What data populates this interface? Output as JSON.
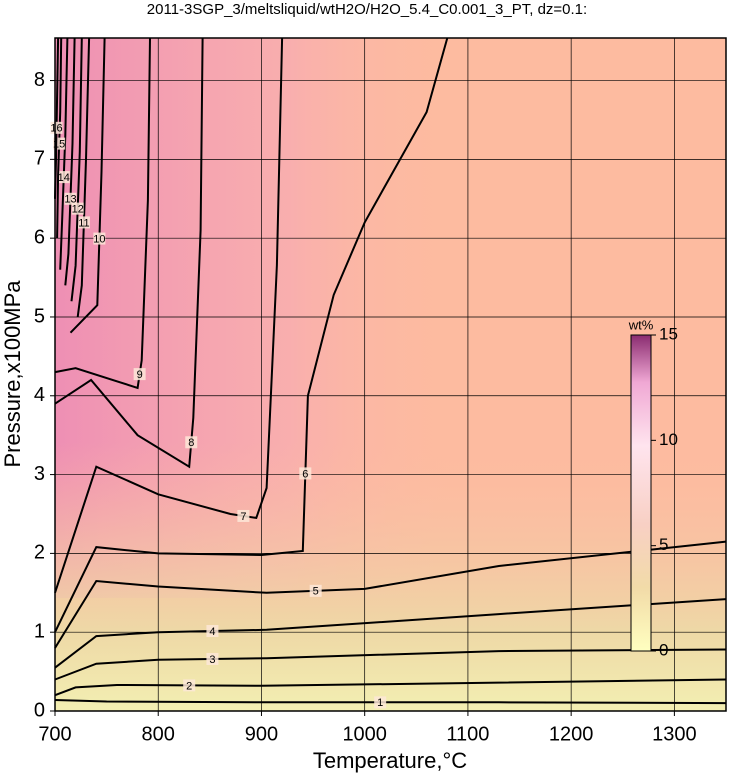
{
  "chart_data": {
    "type": "contour",
    "title": "2011-3SGP_3/meltsliquid/wtH2O/H2O_5.4_C0.001_3_PT, dz=0.1:",
    "xlabel": "Temperature,°C",
    "ylabel": "Pressure,x100MPa",
    "xlim": [
      700,
      1350
    ],
    "ylim": [
      0,
      8.54
    ],
    "xticks": [
      700,
      800,
      900,
      1000,
      1100,
      1200,
      1300
    ],
    "yticks": [
      0,
      1,
      2,
      3,
      4,
      5,
      6,
      7,
      8
    ],
    "grid": true,
    "line_color": "#000000",
    "contours": [
      {
        "level": 1,
        "x": [
          700,
          750,
          900,
          1130,
          1350
        ],
        "y": [
          0.14,
          0.12,
          0.11,
          0.11,
          0.1
        ]
      },
      {
        "level": 2,
        "x": [
          700,
          720,
          760,
          900,
          1130,
          1350
        ],
        "y": [
          0.2,
          0.3,
          0.33,
          0.32,
          0.36,
          0.4
        ]
      },
      {
        "level": 3,
        "x": [
          700,
          740,
          800,
          905,
          1130,
          1350
        ],
        "y": [
          0.4,
          0.6,
          0.65,
          0.67,
          0.76,
          0.78
        ]
      },
      {
        "level": 4,
        "x": [
          700,
          740,
          800,
          905,
          1130,
          1350
        ],
        "y": [
          0.55,
          0.95,
          1.0,
          1.03,
          1.23,
          1.42
        ]
      },
      {
        "level": 5,
        "x": [
          700,
          740,
          800,
          905,
          1000,
          1130,
          1350
        ],
        "y": [
          0.8,
          1.65,
          1.58,
          1.5,
          1.55,
          1.84,
          2.15
        ]
      },
      {
        "level": 6,
        "x": [
          700,
          740,
          800,
          900,
          940,
          945,
          970,
          1000,
          1060,
          1080
        ],
        "y": [
          1.0,
          2.08,
          2.0,
          1.98,
          2.03,
          4.0,
          5.28,
          6.2,
          7.6,
          8.54
        ]
      },
      {
        "level": 7,
        "x": [
          700,
          740,
          800,
          870,
          895,
          905,
          915,
          920
        ],
        "y": [
          1.5,
          3.1,
          2.75,
          2.5,
          2.45,
          2.83,
          5.66,
          8.54
        ]
      },
      {
        "level": 8,
        "x": [
          700,
          735,
          780,
          830,
          834,
          841,
          843
        ],
        "y": [
          3.9,
          4.2,
          3.5,
          3.1,
          3.72,
          6.1,
          8.54
        ]
      },
      {
        "level": 9,
        "x": [
          700,
          720,
          780,
          784,
          790,
          792
        ],
        "y": [
          4.3,
          4.35,
          4.1,
          4.45,
          6.48,
          8.54
        ]
      },
      {
        "level": 10,
        "x": [
          715,
          741,
          745,
          748
        ],
        "y": [
          4.8,
          5.15,
          6.84,
          8.54
        ]
      },
      {
        "level": 11,
        "x": [
          722,
          726,
          730,
          733
        ],
        "y": [
          5.0,
          5.4,
          7.0,
          8.54
        ]
      },
      {
        "level": 12,
        "x": [
          716,
          720,
          724,
          726
        ],
        "y": [
          5.2,
          5.65,
          7.1,
          8.54
        ]
      },
      {
        "level": 13,
        "x": [
          710,
          713,
          717,
          719
        ],
        "y": [
          5.4,
          5.8,
          7.2,
          8.54
        ]
      },
      {
        "level": 14,
        "x": [
          705,
          707,
          710,
          712
        ],
        "y": [
          5.6,
          6.25,
          7.3,
          8.54
        ]
      },
      {
        "level": 15,
        "x": [
          702,
          703,
          705,
          706
        ],
        "y": [
          6.0,
          6.8,
          7.6,
          8.54
        ]
      },
      {
        "level": 16,
        "x": [
          700,
          701,
          702,
          703
        ],
        "y": [
          6.5,
          7.0,
          7.8,
          8.54
        ]
      }
    ],
    "colorbar": {
      "label": "wt%",
      "lim": [
        0,
        15
      ],
      "ticks": [
        0,
        5,
        10,
        15
      ]
    }
  }
}
